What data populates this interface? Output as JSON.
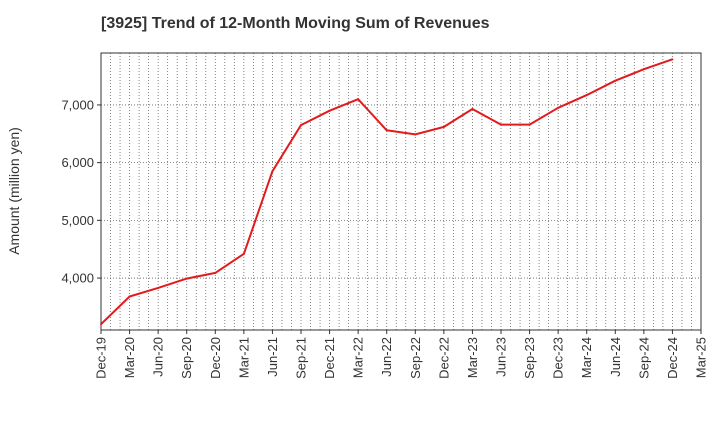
{
  "chart_data": {
    "type": "line",
    "title": "[3925]  Trend of 12-Month Moving Sum of Revenues",
    "xlabel": "",
    "ylabel": "Amount (million yen)",
    "ylim": [
      3100,
      7900
    ],
    "yticks": [
      4000,
      5000,
      6000,
      7000
    ],
    "ytick_labels": [
      "4,000",
      "5,000",
      "6,000",
      "7,000"
    ],
    "x_tick_labels": [
      "Dec-19",
      "Mar-20",
      "Jun-20",
      "Sep-20",
      "Dec-20",
      "Mar-21",
      "Jun-21",
      "Sep-21",
      "Dec-21",
      "Mar-22",
      "Jun-22",
      "Sep-22",
      "Dec-22",
      "Mar-23",
      "Jun-23",
      "Sep-23",
      "Dec-23",
      "Mar-24",
      "Jun-24",
      "Sep-24",
      "Dec-24",
      "Mar-25"
    ],
    "grid": true,
    "legend": "none",
    "series": [
      {
        "color": "#e31a1c",
        "x": [
          "Dec-19",
          "Mar-20",
          "Jun-20",
          "Sep-20",
          "Dec-20",
          "Mar-21",
          "Jun-21",
          "Sep-21",
          "Dec-21",
          "Mar-22",
          "Jun-22",
          "Sep-22",
          "Dec-22",
          "Mar-23",
          "Jun-23",
          "Sep-23",
          "Dec-23",
          "Mar-24",
          "Jun-24",
          "Sep-24",
          "Dec-24"
        ],
        "values": [
          3200,
          3680,
          3830,
          3990,
          4090,
          4420,
          5850,
          6650,
          6900,
          7100,
          6560,
          6490,
          6620,
          6930,
          6660,
          6660,
          6950,
          7170,
          7420,
          7620,
          7790
        ]
      }
    ]
  }
}
